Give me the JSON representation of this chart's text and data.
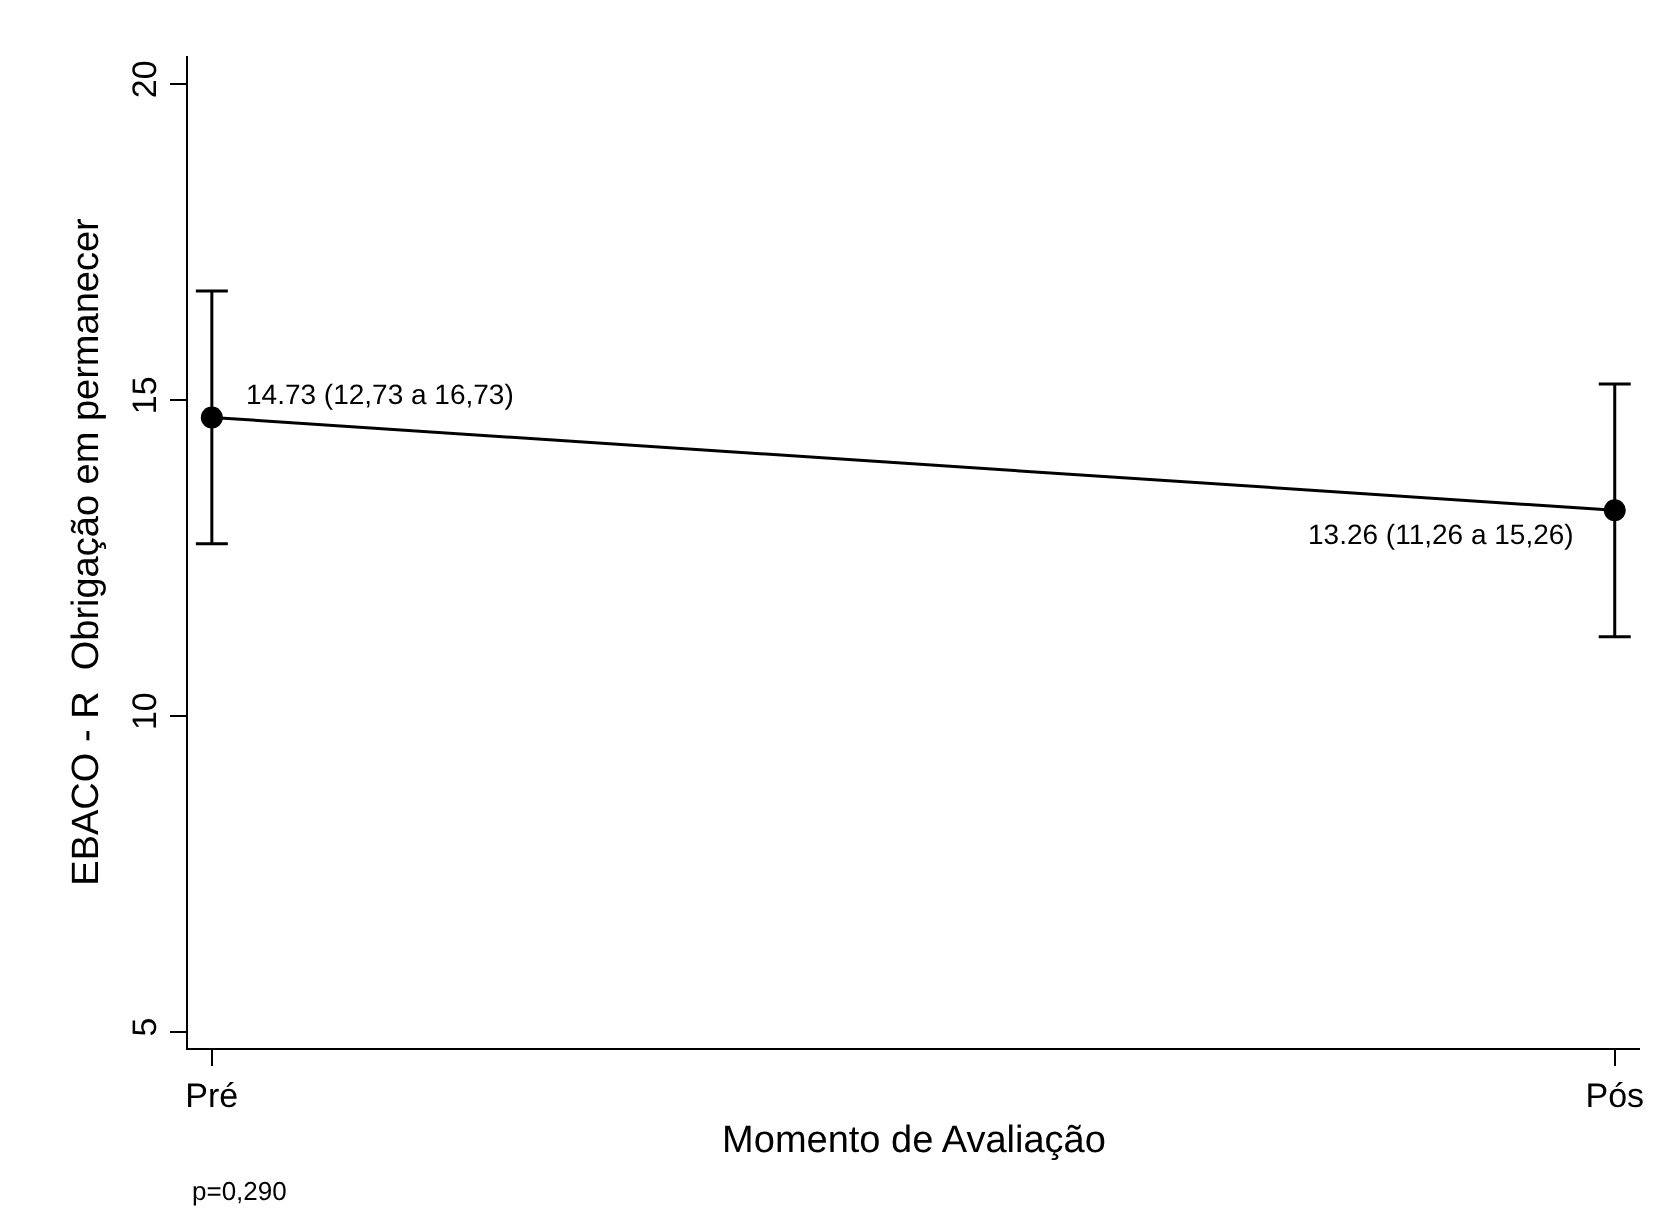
{
  "chart_data": {
    "type": "line",
    "xlabel": "Momento de Avaliação",
    "ylabel": "EBACO - R  Obrigação em permanecer",
    "categories": [
      "Pré",
      "Pós"
    ],
    "series": [
      {
        "color": "#000000",
        "values": [
          14.73,
          13.26
        ],
        "errors": [
          [
            12.73,
            16.73
          ],
          [
            11.26,
            15.26
          ]
        ]
      }
    ],
    "ylim": [
      4.75,
      20.45
    ],
    "yticks": [
      5,
      10,
      15,
      20
    ],
    "marker": "circle",
    "line_style": "solid",
    "annotations": [
      {
        "text": "14.73 (12,73 a 16,73)",
        "x": "Pré",
        "y": 14.73
      },
      {
        "text": "13.26 (11,26 a 15,26)",
        "x": "Pós",
        "y": 13.26
      },
      "p=0,290"
    ]
  }
}
